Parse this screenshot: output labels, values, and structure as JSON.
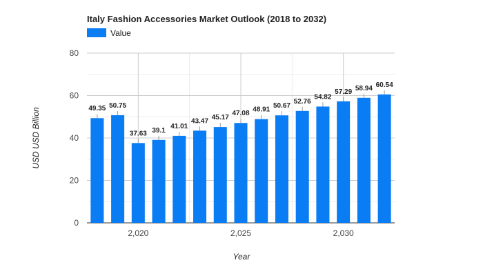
{
  "colors": {
    "bar": "#0a7cf4",
    "legend_swatch": "#0a7cf4"
  },
  "chart_data": {
    "type": "bar",
    "title": "Italy Fashion Accessories Market Outlook (2018 to 2032)",
    "xlabel": "Year",
    "ylabel": "USD USD Billion",
    "legend_position": "top-left",
    "grid": true,
    "series": [
      {
        "name": "Value",
        "x": [
          2018,
          2019,
          2020,
          2021,
          2022,
          2023,
          2024,
          2025,
          2026,
          2027,
          2028,
          2029,
          2030,
          2031,
          2032
        ],
        "values": [
          49.35,
          50.75,
          37.63,
          39.1,
          41.01,
          43.47,
          45.17,
          47.08,
          48.91,
          50.67,
          52.76,
          54.82,
          57.29,
          58.94,
          60.54
        ],
        "labels": [
          "49.35",
          "50.75",
          "37.63",
          "39.1",
          "41.01",
          "43.47",
          "45.17",
          "47.08",
          "48.91",
          "50.67",
          "52.76",
          "54.82",
          "57.29",
          "58.94",
          "60.54"
        ]
      }
    ],
    "xlim": [
      2017.5,
      2032.5
    ],
    "ylim": [
      0,
      80
    ],
    "yticks": [
      0,
      20,
      40,
      60,
      80
    ],
    "ytick_labels": [
      "0",
      "20",
      "40",
      "60",
      "80"
    ],
    "xticks": [
      2020,
      2025,
      2030
    ],
    "xtick_labels": [
      "2,020",
      "2,025",
      "2,030"
    ]
  }
}
